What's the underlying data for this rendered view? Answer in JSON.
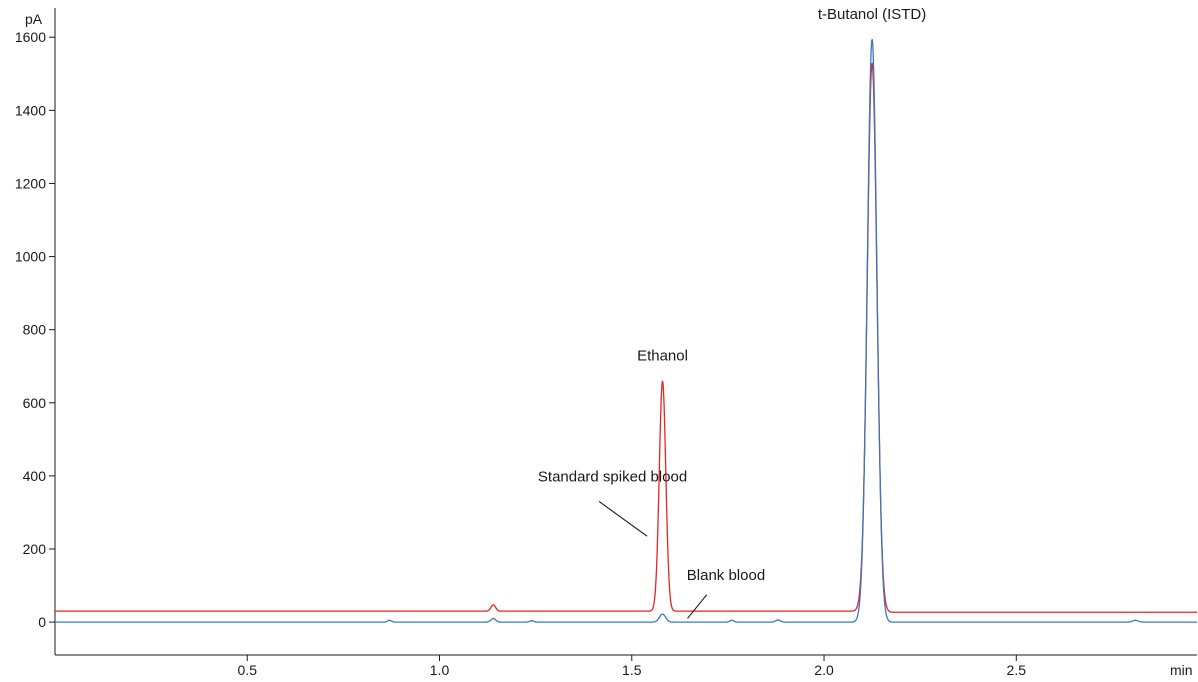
{
  "chart_data": {
    "type": "line",
    "title": "",
    "xlabel": "min",
    "ylabel": "pA",
    "xlim": [
      0,
      2.97
    ],
    "ylim": [
      -90,
      1680
    ],
    "x_ticks": [
      0.5,
      1.0,
      1.5,
      2.0,
      2.5
    ],
    "x_tick_labels": [
      "0.5",
      "1.0",
      "1.5",
      "2.0",
      "2.5"
    ],
    "y_ticks": [
      0,
      200,
      400,
      600,
      800,
      1000,
      1200,
      1400,
      1600
    ],
    "y_tick_labels": [
      "0",
      "200",
      "400",
      "600",
      "800",
      "1000",
      "1200",
      "1400",
      "1600"
    ],
    "grid": false,
    "legend": "none",
    "series": [
      {
        "name": "Standard spiked blood",
        "color": "#e8251f",
        "baseline": 30,
        "baseline_end": 27,
        "peaks": [
          {
            "x": 1.14,
            "height": 17,
            "sigma": 0.006
          },
          {
            "x": 1.58,
            "height": 630,
            "sigma": 0.0085
          },
          {
            "x": 2.125,
            "height": 1500,
            "sigma": 0.0125
          }
        ]
      },
      {
        "name": "Blank blood",
        "color": "#3a78bd",
        "baseline": 0,
        "baseline_end": 0,
        "peaks": [
          {
            "x": 0.87,
            "height": 5,
            "sigma": 0.005
          },
          {
            "x": 1.14,
            "height": 10,
            "sigma": 0.006
          },
          {
            "x": 1.24,
            "height": 4,
            "sigma": 0.005
          },
          {
            "x": 1.58,
            "height": 22,
            "sigma": 0.008
          },
          {
            "x": 1.76,
            "height": 5,
            "sigma": 0.005
          },
          {
            "x": 1.88,
            "height": 6,
            "sigma": 0.006
          },
          {
            "x": 2.125,
            "height": 1595,
            "sigma": 0.0125
          },
          {
            "x": 2.81,
            "height": 5,
            "sigma": 0.007
          }
        ]
      }
    ],
    "annotations": [
      {
        "text": "t-Butanol (ISTD)",
        "x": 2.125,
        "y": 1650,
        "anchor": "middle"
      },
      {
        "text": "Ethanol",
        "x": 1.58,
        "y": 715,
        "anchor": "middle"
      },
      {
        "text": "Standard spiked blood",
        "x": 1.45,
        "y": 385,
        "anchor": "middle",
        "line_from": [
          1.415,
          330
        ],
        "line_to": [
          1.54,
          235
        ]
      },
      {
        "text": "Blank blood",
        "x": 1.745,
        "y": 115,
        "anchor": "middle",
        "line_from": [
          1.695,
          75
        ],
        "line_to": [
          1.645,
          10
        ]
      }
    ]
  }
}
